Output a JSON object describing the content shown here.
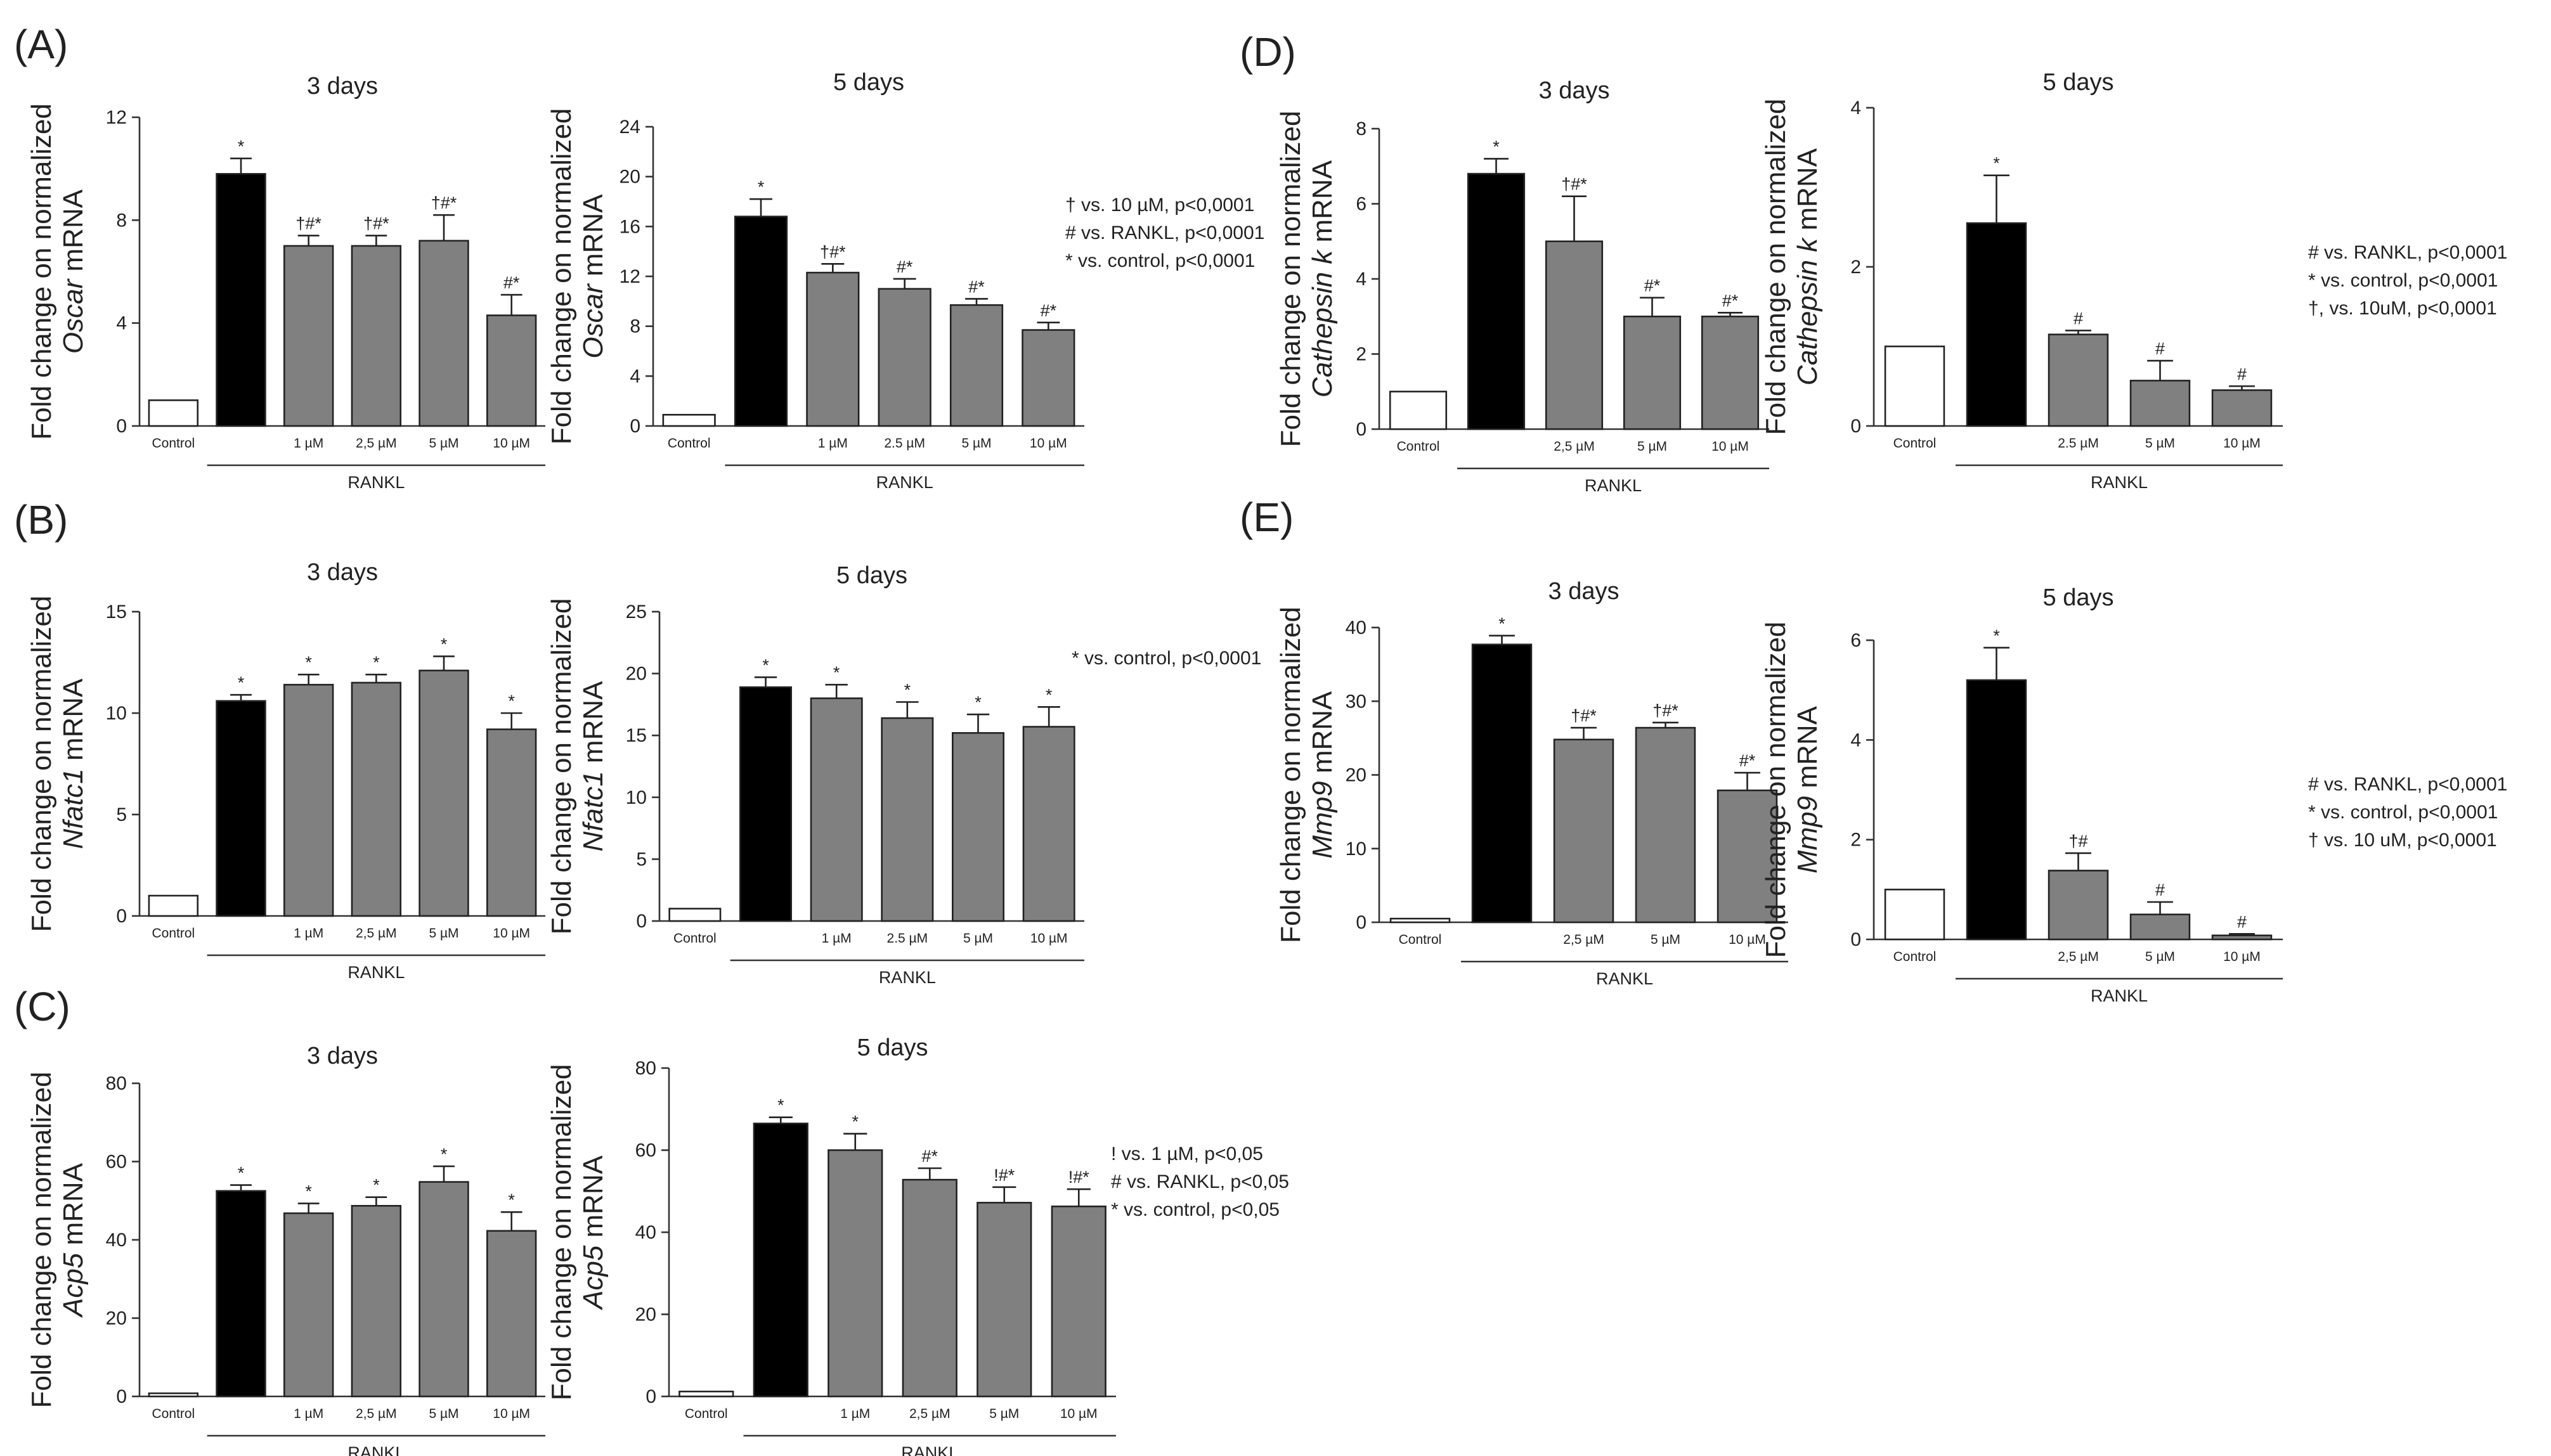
{
  "figure": {
    "panels": [
      {
        "letter": "(A)"
      },
      {
        "letter": "(B)"
      },
      {
        "letter": "(C)"
      },
      {
        "letter": "(D)"
      },
      {
        "letter": "(E)"
      }
    ]
  },
  "colors": {
    "control": "#ffffff",
    "rankl": "#000000",
    "treated": "#808080",
    "axis": "#333333"
  },
  "chart_data": [
    {
      "id": "A1",
      "panel": "(A)",
      "type": "bar",
      "title": "3 days",
      "ylabel_prefix": "Fold change on normalized",
      "gene": "Oscar",
      "ylabel_suffix": "mRNA",
      "categories": [
        "Control",
        "",
        "1 µM",
        "2,5 µM",
        "5 µM",
        "10 µM"
      ],
      "values": [
        1.0,
        9.8,
        7.0,
        7.0,
        7.2,
        4.3
      ],
      "errors": [
        0,
        0.6,
        0.4,
        0.4,
        1.0,
        0.8
      ],
      "significance": [
        "",
        "*",
        "†#*",
        "†#*",
        "†#*",
        "#*"
      ],
      "ylim": [
        0,
        12
      ],
      "yticks": [
        0,
        4,
        8,
        12
      ],
      "group_label": "RANKL"
    },
    {
      "id": "A2",
      "panel": "(A)",
      "type": "bar",
      "title": "5 days",
      "ylabel_prefix": "Fold change on normalized",
      "gene": "Oscar",
      "ylabel_suffix": "mRNA",
      "categories": [
        "Control",
        "",
        "1 µM",
        "2.5 µM",
        "5 µM",
        "10 µM"
      ],
      "values": [
        0.9,
        16.8,
        12.3,
        11.0,
        9.7,
        7.7
      ],
      "errors": [
        0,
        1.4,
        0.7,
        0.8,
        0.5,
        0.6
      ],
      "significance": [
        "",
        "*",
        "†#*",
        "#*",
        "#*",
        "#*"
      ],
      "ylim": [
        0,
        24
      ],
      "yticks": [
        0,
        4,
        8,
        12,
        16,
        20,
        24
      ],
      "group_label": "RANKL",
      "legend": [
        "† vs. 10 µM, p<0,0001",
        "# vs. RANKL, p<0,0001",
        "* vs. control, p<0,0001"
      ]
    },
    {
      "id": "B1",
      "panel": "(B)",
      "type": "bar",
      "title": "3 days",
      "ylabel_prefix": "Fold change on normalized",
      "gene": "Nfatc1",
      "ylabel_suffix": "mRNA",
      "categories": [
        "Control",
        "",
        "1 µM",
        "2,5 µM",
        "5 µM",
        "10 µM"
      ],
      "values": [
        1.0,
        10.6,
        11.4,
        11.5,
        12.1,
        9.2
      ],
      "errors": [
        0,
        0.3,
        0.5,
        0.4,
        0.7,
        0.8
      ],
      "significance": [
        "",
        "*",
        "*",
        "*",
        "*",
        "*"
      ],
      "ylim": [
        0,
        15
      ],
      "yticks": [
        0,
        5,
        10,
        15
      ],
      "group_label": "RANKL"
    },
    {
      "id": "B2",
      "panel": "(B)",
      "type": "bar",
      "title": "5 days",
      "ylabel_prefix": "Fold change on normalized",
      "gene": "Nfatc1",
      "ylabel_suffix": "mRNA",
      "categories": [
        "Control",
        "",
        "1 µM",
        "2.5 µM",
        "5 µM",
        "10 µM"
      ],
      "values": [
        1.0,
        18.9,
        18.0,
        16.4,
        15.2,
        15.7
      ],
      "errors": [
        0,
        0.8,
        1.1,
        1.3,
        1.5,
        1.6
      ],
      "significance": [
        "",
        "*",
        "*",
        "*",
        "*",
        "*"
      ],
      "ylim": [
        0,
        25
      ],
      "yticks": [
        0,
        5,
        10,
        15,
        20,
        25
      ],
      "group_label": "RANKL",
      "legend": [
        "* vs. control, p<0,0001"
      ]
    },
    {
      "id": "C1",
      "panel": "(C)",
      "type": "bar",
      "title": "3 days",
      "ylabel_prefix": "Fold change on normalized",
      "gene": "Acp5",
      "ylabel_suffix": "mRNA",
      "categories": [
        "Control",
        "",
        "1 µM",
        "2,5 µM",
        "5 µM",
        "10 µM"
      ],
      "values": [
        0.8,
        52.5,
        46.8,
        48.7,
        54.8,
        42.3
      ],
      "errors": [
        0,
        1.5,
        2.5,
        2.2,
        4.0,
        4.8
      ],
      "significance": [
        "",
        "*",
        "*",
        "*",
        "*",
        "*"
      ],
      "ylim": [
        0,
        80
      ],
      "yticks": [
        0,
        20,
        40,
        60,
        80
      ],
      "group_label": "RANKL"
    },
    {
      "id": "C2",
      "panel": "(C)",
      "type": "bar",
      "title": "5 days",
      "ylabel_prefix": "Fold change on normalized",
      "gene": "Acp5",
      "ylabel_suffix": "mRNA",
      "categories": [
        "Control",
        "",
        "1 µM",
        "2,5 µM",
        "5 µM",
        "10 µM"
      ],
      "values": [
        1.2,
        66.5,
        60.0,
        52.8,
        47.2,
        46.3
      ],
      "errors": [
        0,
        1.5,
        4.0,
        2.8,
        3.8,
        4.2
      ],
      "significance": [
        "",
        "*",
        "*",
        "#*",
        "!#*",
        "!#*"
      ],
      "ylim": [
        0,
        80
      ],
      "yticks": [
        0,
        20,
        40,
        60,
        80
      ],
      "group_label": "RANKL",
      "legend": [
        "! vs. 1 µM, p<0,05",
        "# vs. RANKL, p<0,05",
        "* vs. control, p<0,05"
      ]
    },
    {
      "id": "D1",
      "panel": "(D)",
      "type": "bar",
      "title": "3 days",
      "ylabel_prefix": "Fold change on normalized",
      "gene": "Cathepsin k",
      "ylabel_suffix": "mRNA",
      "categories": [
        "Control",
        "",
        "2,5 µM",
        "5 µM",
        "10 µM"
      ],
      "values": [
        1.0,
        6.8,
        5.0,
        3.0,
        3.0
      ],
      "errors": [
        0,
        0.4,
        1.2,
        0.5,
        0.1
      ],
      "significance": [
        "",
        "*",
        "†#*",
        "#*",
        "#*"
      ],
      "ylim": [
        0,
        8
      ],
      "yticks": [
        0,
        2,
        4,
        6,
        8
      ],
      "group_label": "RANKL"
    },
    {
      "id": "D2",
      "panel": "(D)",
      "type": "bar",
      "title": "5 days",
      "ylabel_prefix": "Fold change on normalized",
      "gene": "Cathepsin k",
      "ylabel_suffix": "mRNA",
      "categories": [
        "Control",
        "",
        "2.5 µM",
        "5 µM",
        "10 µM"
      ],
      "values": [
        1.0,
        2.55,
        1.15,
        0.57,
        0.45
      ],
      "errors": [
        0,
        0.6,
        0.05,
        0.25,
        0.05
      ],
      "significance": [
        "",
        "*",
        "#",
        "#",
        "#"
      ],
      "ylim": [
        0,
        4
      ],
      "yticks": [
        0,
        2,
        4
      ],
      "group_label": "RANKL",
      "legend": [
        "# vs. RANKL, p<0,0001",
        "* vs. control, p<0,0001",
        "†, vs. 10uM, p<0,0001"
      ]
    },
    {
      "id": "E1",
      "panel": "(E)",
      "type": "bar",
      "title": "3 days",
      "ylabel_prefix": "Fold change on normalized",
      "gene": "Mmp9",
      "ylabel_suffix": "mRNA",
      "categories": [
        "Control",
        "",
        "2,5 µM",
        "5 µM",
        "10 µM"
      ],
      "values": [
        0.5,
        37.7,
        24.8,
        26.4,
        17.9
      ],
      "errors": [
        0,
        1.2,
        1.6,
        0.7,
        2.4
      ],
      "significance": [
        "",
        "*",
        "†#*",
        "†#*",
        "#*"
      ],
      "ylim": [
        0,
        40
      ],
      "yticks": [
        0,
        10,
        20,
        30,
        40
      ],
      "group_label": "RANKL"
    },
    {
      "id": "E2",
      "panel": "(E)",
      "type": "bar",
      "title": "5 days",
      "ylabel_prefix": "Fold change on normalized",
      "gene": "Mmp9",
      "ylabel_suffix": "mRNA",
      "categories": [
        "Control",
        "",
        "2,5 µM",
        "5 µM",
        "10 µM"
      ],
      "values": [
        1.0,
        5.2,
        1.38,
        0.5,
        0.08
      ],
      "errors": [
        0,
        0.65,
        0.35,
        0.25,
        0.03
      ],
      "significance": [
        "",
        "*",
        "†#",
        "#",
        "#"
      ],
      "ylim": [
        0,
        6
      ],
      "yticks": [
        0,
        2,
        4,
        6
      ],
      "group_label": "RANKL",
      "legend": [
        "# vs. RANKL, p<0,0001",
        "* vs. control, p<0,0001",
        "† vs. 10 uM, p<0,0001"
      ]
    }
  ]
}
